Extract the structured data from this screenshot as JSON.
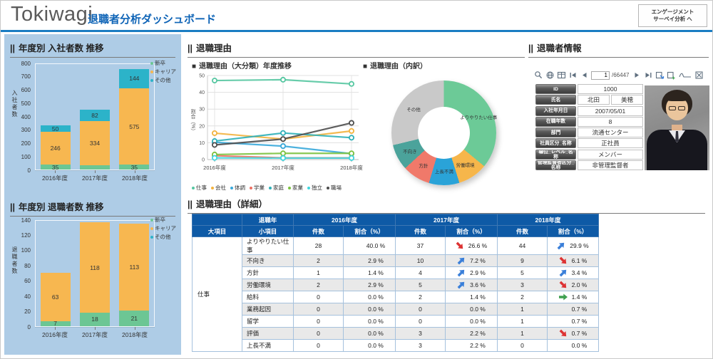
{
  "ui": {
    "section_prefix": "||",
    "subsection_prefix": "■"
  },
  "colors": {
    "accent_blue": "#1a7dc2",
    "title_blue": "#0d63b6",
    "table_header_blue": "#0e5aa6",
    "sidebar_bg": "#aecce6",
    "arrow_up": "#3a7fd9",
    "arrow_down": "#dd3333",
    "arrow_flat": "#3fa04f"
  },
  "header": {
    "brand": "Tokiwagi",
    "title": "退職者分析ダッシュボード",
    "nav_button_line1": "エンゲージメント",
    "nav_button_line2": "サーベイ分析 へ"
  },
  "sections": {
    "hires": "年度別 入社者数 推移",
    "leavers": "年度別 退職者数 推移",
    "reasons": "退職理由",
    "reasons_trend": "退職理由（大分類）年度推移",
    "reasons_breakdown": "退職理由（内訳）",
    "reasons_detail": "退職理由（詳細）",
    "retiree_info": "退職者情報"
  },
  "chart_data": [
    {
      "id": "hires",
      "type": "bar",
      "stacked": true,
      "title": "年度別 入社者数 推移",
      "ylabel": "入社者数",
      "ylim": [
        0,
        800
      ],
      "yticks": [
        0,
        100,
        200,
        300,
        400,
        500,
        600,
        700,
        800
      ],
      "categories": [
        "2016年度",
        "2017年度",
        "2018年度"
      ],
      "series": [
        {
          "name": "新卒",
          "color": "#6cc694",
          "values": [
            35,
            30,
            35
          ],
          "labels": [
            "35",
            "",
            "35"
          ]
        },
        {
          "name": "キャリア",
          "color": "#f7b750",
          "values": [
            246,
            334,
            575
          ],
          "labels": [
            "246",
            "334",
            "575"
          ]
        },
        {
          "name": "その他",
          "color": "#2cb3c9",
          "values": [
            50,
            82,
            144
          ],
          "labels": [
            "50",
            "82",
            "144"
          ]
        }
      ],
      "legend_position": "top-right",
      "grid": false
    },
    {
      "id": "leavers",
      "type": "bar",
      "stacked": true,
      "title": "年度別 退職者数 推移",
      "ylabel": "退職者数",
      "ylim": [
        0,
        140
      ],
      "yticks": [
        0,
        20,
        40,
        60,
        80,
        100,
        120,
        140
      ],
      "categories": [
        "2016年度",
        "2017年度",
        "2018年度"
      ],
      "series": [
        {
          "name": "新卒",
          "color": "#6cc694",
          "values": [
            7,
            18,
            21
          ],
          "labels": [
            "7",
            "18",
            "21"
          ]
        },
        {
          "name": "キャリア",
          "color": "#f7b750",
          "values": [
            63,
            118,
            113
          ],
          "labels": [
            "63",
            "118",
            "113"
          ]
        },
        {
          "name": "その他",
          "color": "#2cb3c9",
          "values": [
            0,
            0,
            0
          ],
          "labels": [
            "",
            "",
            ""
          ]
        }
      ],
      "legend_position": "top-right",
      "grid": false
    },
    {
      "id": "reason_trend",
      "type": "line",
      "title": "退職理由（大分類）年度推移",
      "ylabel": "割合（%）",
      "ylim": [
        0,
        50
      ],
      "yticks": [
        0,
        10,
        20,
        30,
        40,
        50
      ],
      "categories": [
        "2016年度",
        "2017年度",
        "2018年度"
      ],
      "series": [
        {
          "name": "仕事",
          "color": "#56c7a1",
          "values": [
            47,
            47.5,
            45
          ]
        },
        {
          "name": "会社",
          "color": "#f2b33f",
          "values": [
            15.7,
            12.2,
            17
          ]
        },
        {
          "name": "体調",
          "color": "#38a8da",
          "values": [
            10.3,
            8,
            3.5
          ]
        },
        {
          "name": "学業",
          "color": "#ee6f61",
          "values": [
            2.3,
            1,
            1
          ]
        },
        {
          "name": "家庭",
          "color": "#2eb0b8",
          "values": [
            11,
            15.8,
            13
          ]
        },
        {
          "name": "家業",
          "color": "#7cc23f",
          "values": [
            3,
            3.7,
            3.7
          ]
        },
        {
          "name": "独立",
          "color": "#41d6de",
          "values": [
            1,
            0.9,
            0.9
          ]
        },
        {
          "name": "職場",
          "color": "#4c4c4c",
          "values": [
            8.7,
            12.2,
            21.8
          ]
        }
      ],
      "legend_position": "bottom",
      "grid": true
    },
    {
      "id": "reason_breakdown",
      "type": "pie",
      "title": "退職理由（内訳）",
      "slices": [
        {
          "label": "よりやりたい仕事",
          "value": 36,
          "color": "#6cca97"
        },
        {
          "label": "労働環境",
          "value": 9.2,
          "color": "#f6b64b"
        },
        {
          "label": "上長不満",
          "value": 9.4,
          "color": "#2aa3d8"
        },
        {
          "label": "方針",
          "value": 8.6,
          "color": "#f0796a"
        },
        {
          "label": "不向き",
          "value": 8,
          "color": "#4ba39b"
        },
        {
          "label": "その他",
          "value": 28.8,
          "color": "#c9c9c9"
        }
      ]
    }
  ],
  "detail_table": {
    "year_label": "退職年",
    "years": [
      "2016年度",
      "2017年度",
      "2018年度"
    ],
    "col_major": "大項目",
    "col_minor": "小項目",
    "col_count": "件数",
    "col_ratio": "割合（%）",
    "major_label": "仕事",
    "rows": [
      {
        "minor": "よりやりたい仕事",
        "cells": [
          {
            "count": "28",
            "ratio": "40.0 %",
            "arrow": ""
          },
          {
            "count": "37",
            "ratio": "26.6 %",
            "arrow": "down"
          },
          {
            "count": "44",
            "ratio": "29.9 %",
            "arrow": "up"
          }
        ]
      },
      {
        "minor": "不向き",
        "cells": [
          {
            "count": "2",
            "ratio": "2.9 %",
            "arrow": ""
          },
          {
            "count": "10",
            "ratio": "7.2 %",
            "arrow": "up"
          },
          {
            "count": "9",
            "ratio": "6.1 %",
            "arrow": "down"
          }
        ]
      },
      {
        "minor": "方針",
        "cells": [
          {
            "count": "1",
            "ratio": "1.4 %",
            "arrow": ""
          },
          {
            "count": "4",
            "ratio": "2.9 %",
            "arrow": "up"
          },
          {
            "count": "5",
            "ratio": "3.4 %",
            "arrow": "up"
          }
        ]
      },
      {
        "minor": "労働環境",
        "cells": [
          {
            "count": "2",
            "ratio": "2.9 %",
            "arrow": ""
          },
          {
            "count": "5",
            "ratio": "3.6 %",
            "arrow": "up"
          },
          {
            "count": "3",
            "ratio": "2.0 %",
            "arrow": "down"
          }
        ]
      },
      {
        "minor": "給料",
        "cells": [
          {
            "count": "0",
            "ratio": "0.0 %",
            "arrow": ""
          },
          {
            "count": "2",
            "ratio": "1.4 %",
            "arrow": ""
          },
          {
            "count": "2",
            "ratio": "1.4 %",
            "arrow": "flat"
          }
        ]
      },
      {
        "minor": "業務起因",
        "cells": [
          {
            "count": "0",
            "ratio": "0.0 %",
            "arrow": ""
          },
          {
            "count": "0",
            "ratio": "0.0 %",
            "arrow": ""
          },
          {
            "count": "1",
            "ratio": "0.7 %",
            "arrow": ""
          }
        ]
      },
      {
        "minor": "留学",
        "cells": [
          {
            "count": "0",
            "ratio": "0.0 %",
            "arrow": ""
          },
          {
            "count": "0",
            "ratio": "0.0 %",
            "arrow": ""
          },
          {
            "count": "1",
            "ratio": "0.7 %",
            "arrow": ""
          }
        ]
      },
      {
        "minor": "評価",
        "cells": [
          {
            "count": "0",
            "ratio": "0.0 %",
            "arrow": ""
          },
          {
            "count": "3",
            "ratio": "2.2 %",
            "arrow": ""
          },
          {
            "count": "1",
            "ratio": "0.7 %",
            "arrow": "down"
          }
        ]
      },
      {
        "minor": "上長不満",
        "cells": [
          {
            "count": "0",
            "ratio": "0.0 %",
            "arrow": ""
          },
          {
            "count": "3",
            "ratio": "2.2 %",
            "arrow": ""
          },
          {
            "count": "0",
            "ratio": "0.0 %",
            "arrow": ""
          }
        ]
      }
    ]
  },
  "retiree": {
    "toolbar": {
      "page": "1",
      "total": "/66447"
    },
    "fields": [
      {
        "label": "ID",
        "values": [
          "1000"
        ]
      },
      {
        "label": "氏名",
        "values": [
          "北田",
          "美穂"
        ]
      },
      {
        "label": "入社年月日",
        "values": [
          "2007/05/01"
        ]
      },
      {
        "label": "在職年数",
        "values": [
          "8"
        ]
      },
      {
        "label": "部門",
        "values": [
          "流通センター"
        ]
      },
      {
        "label": "社員区分_名称",
        "values": [
          "正社員"
        ]
      },
      {
        "label": "職位_レベル_名称",
        "values": [
          "メンバー"
        ]
      },
      {
        "label": "管理監督者区分_名称",
        "values": [
          "非管理監督者"
        ]
      }
    ]
  }
}
